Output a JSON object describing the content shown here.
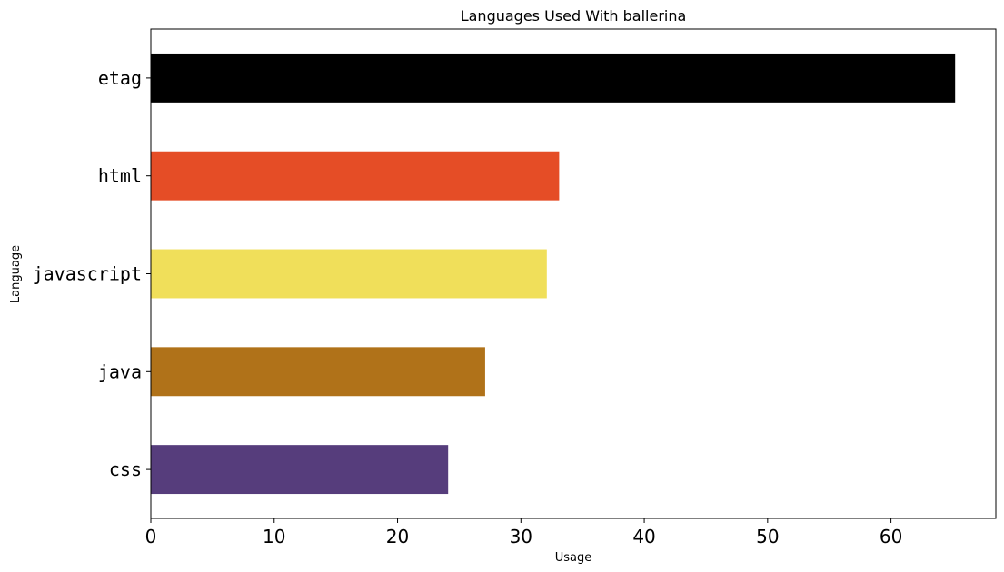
{
  "chart_data": {
    "type": "bar",
    "orientation": "horizontal",
    "title": "Languages Used With ballerina",
    "xlabel": "Usage",
    "ylabel": "Language",
    "categories": [
      "etag",
      "html",
      "javascript",
      "java",
      "css"
    ],
    "values": [
      65.2,
      33.1,
      32.1,
      27.1,
      24.1
    ],
    "colors": [
      "#000000",
      "#e54d26",
      "#f0df5a",
      "#b07219",
      "#563d7c"
    ],
    "xlim": [
      0,
      68.5
    ],
    "xticks": [
      0,
      10,
      20,
      30,
      40,
      50,
      60
    ],
    "xtick_labels": [
      "0",
      "10",
      "20",
      "30",
      "40",
      "50",
      "60"
    ],
    "grid": false,
    "legend": "none"
  }
}
